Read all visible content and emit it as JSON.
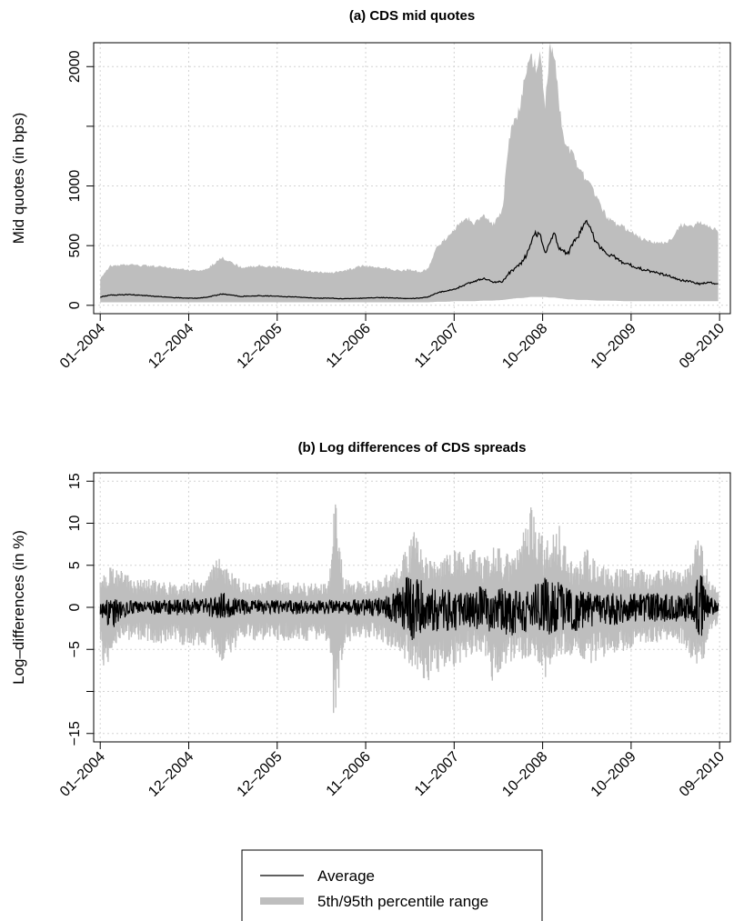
{
  "chart_data": [
    {
      "type": "area",
      "title": "(a) CDS mid quotes",
      "xlabel": "",
      "ylabel": "Mid quotes (in bps)",
      "x_tick_labels": [
        "01–2004",
        "12–2004",
        "12–2005",
        "11–2006",
        "11–2007",
        "10–2008",
        "10–2009",
        "09–2010"
      ],
      "y_ticks": [
        0,
        500,
        1000,
        1500,
        2000
      ],
      "y_tick_labels": [
        "0",
        "500",
        "1000",
        "",
        "2000"
      ],
      "ylim": [
        -70,
        2200
      ],
      "xlim": [
        2003.93,
        2010.73
      ],
      "grid": true,
      "band": {
        "x": [
          2004.0,
          2004.1,
          2004.3,
          2004.5,
          2004.7,
          2004.9,
          2005.05,
          2005.15,
          2005.3,
          2005.5,
          2005.7,
          2005.9,
          2006.1,
          2006.3,
          2006.45,
          2006.6,
          2006.8,
          2007.0,
          2007.2,
          2007.3,
          2007.4,
          2007.5,
          2007.6,
          2007.7,
          2007.8,
          2007.9,
          2008.0,
          2008.1,
          2008.2,
          2008.3,
          2008.35,
          2008.4,
          2008.45,
          2008.5,
          2008.55,
          2008.6,
          2008.65,
          2008.7,
          2008.75,
          2008.8,
          2008.85,
          2008.9,
          2008.95,
          2009.0,
          2009.05,
          2009.1,
          2009.2,
          2009.3,
          2009.4,
          2009.5,
          2009.6,
          2009.7,
          2009.8,
          2009.9,
          2010.0,
          2010.1,
          2010.2,
          2010.3,
          2010.4,
          2010.5,
          2010.6
        ],
        "upper": [
          220,
          330,
          340,
          330,
          320,
          300,
          290,
          310,
          400,
          320,
          330,
          320,
          300,
          280,
          270,
          290,
          330,
          320,
          290,
          300,
          280,
          300,
          500,
          560,
          650,
          740,
          680,
          760,
          680,
          800,
          1300,
          1500,
          1550,
          1750,
          1950,
          2100,
          2000,
          2150,
          1650,
          2150,
          2100,
          1700,
          1400,
          1300,
          1250,
          1150,
          1050,
          900,
          750,
          680,
          650,
          600,
          550,
          530,
          520,
          550,
          680,
          650,
          700,
          660,
          630
        ],
        "lower": [
          25,
          25,
          25,
          25,
          25,
          25,
          25,
          25,
          25,
          25,
          25,
          25,
          25,
          25,
          25,
          25,
          25,
          25,
          25,
          25,
          25,
          25,
          30,
          30,
          35,
          35,
          35,
          40,
          40,
          45,
          50,
          55,
          60,
          60,
          65,
          70,
          70,
          70,
          70,
          65,
          65,
          60,
          55,
          50,
          50,
          45,
          45,
          40,
          40,
          38,
          35,
          35,
          35,
          35,
          35,
          35,
          35,
          35,
          35,
          35,
          35
        ]
      },
      "average": {
        "x": [
          2004.0,
          2004.1,
          2004.3,
          2004.5,
          2004.7,
          2004.9,
          2005.05,
          2005.15,
          2005.3,
          2005.5,
          2005.7,
          2005.9,
          2006.1,
          2006.3,
          2006.45,
          2006.6,
          2006.8,
          2007.0,
          2007.2,
          2007.3,
          2007.4,
          2007.5,
          2007.6,
          2007.7,
          2007.8,
          2007.9,
          2008.0,
          2008.1,
          2008.2,
          2008.3,
          2008.35,
          2008.4,
          2008.45,
          2008.5,
          2008.55,
          2008.6,
          2008.65,
          2008.7,
          2008.75,
          2008.8,
          2008.85,
          2008.9,
          2008.95,
          2009.0,
          2009.05,
          2009.1,
          2009.2,
          2009.3,
          2009.4,
          2009.5,
          2009.6,
          2009.7,
          2009.8,
          2009.9,
          2010.0,
          2010.1,
          2010.2,
          2010.3,
          2010.4,
          2010.5,
          2010.6
        ],
        "values": [
          70,
          85,
          90,
          80,
          70,
          60,
          60,
          70,
          95,
          75,
          80,
          75,
          70,
          60,
          60,
          55,
          60,
          65,
          60,
          55,
          60,
          70,
          105,
          120,
          140,
          175,
          200,
          230,
          190,
          200,
          260,
          290,
          320,
          360,
          420,
          530,
          600,
          580,
          430,
          540,
          600,
          480,
          450,
          440,
          520,
          580,
          700,
          520,
          440,
          400,
          350,
          330,
          300,
          280,
          260,
          240,
          210,
          200,
          180,
          190,
          180
        ]
      }
    },
    {
      "type": "area",
      "title": "(b) Log differences of CDS spreads",
      "xlabel": "",
      "ylabel": "Log–differences (in %)",
      "x_tick_labels": [
        "01–2004",
        "12–2004",
        "12–2005",
        "11–2006",
        "11–2007",
        "10–2008",
        "10–2009",
        "09–2010"
      ],
      "y_ticks": [
        -15,
        -10,
        -5,
        0,
        5,
        10,
        15
      ],
      "y_tick_labels": [
        "−15",
        "",
        "−5",
        "0",
        "5",
        "10",
        "15"
      ],
      "ylim": [
        -16,
        16
      ],
      "xlim": [
        2003.93,
        2010.73
      ],
      "grid": true,
      "band_envelope": {
        "x": [
          2004.0,
          2004.05,
          2004.1,
          2004.2,
          2004.35,
          2004.5,
          2004.65,
          2004.8,
          2004.95,
          2005.1,
          2005.2,
          2005.3,
          2005.4,
          2005.5,
          2005.7,
          2005.9,
          2006.1,
          2006.3,
          2006.45,
          2006.5,
          2006.6,
          2006.8,
          2007.0,
          2007.1,
          2007.2,
          2007.35,
          2007.5,
          2007.65,
          2007.8,
          2007.95,
          2008.0,
          2008.1,
          2008.2,
          2008.3,
          2008.45,
          2008.6,
          2008.75,
          2008.9,
          2009.0,
          2009.1,
          2009.2,
          2009.35,
          2009.5,
          2009.65,
          2009.8,
          2009.95,
          2010.1,
          2010.25,
          2010.4,
          2010.5,
          2010.6
        ],
        "upper": [
          3.5,
          4.5,
          5.0,
          4.5,
          3.5,
          3.5,
          3.0,
          3.0,
          3.0,
          4.0,
          5.0,
          6.5,
          4.5,
          3.5,
          3.0,
          3.5,
          3.0,
          3.0,
          3.5,
          14.0,
          3.5,
          3.0,
          3.5,
          4.5,
          5.0,
          10.0,
          6.0,
          5.5,
          7.5,
          6.5,
          7.0,
          6.0,
          8.5,
          6.5,
          7.0,
          13.0,
          7.5,
          10.5,
          6.0,
          5.5,
          7.0,
          5.0,
          4.5,
          5.0,
          4.5,
          4.5,
          5.0,
          4.5,
          9.0,
          3.5,
          2.0
        ],
        "lower": [
          -3.5,
          -10.5,
          -5.0,
          -4.5,
          -4.0,
          -4.0,
          -4.5,
          -4.0,
          -5.0,
          -4.5,
          -5.0,
          -6.5,
          -5.5,
          -4.0,
          -4.0,
          -4.0,
          -4.0,
          -4.0,
          -4.5,
          -15.0,
          -4.5,
          -3.5,
          -4.0,
          -5.0,
          -5.5,
          -7.5,
          -9.0,
          -8.0,
          -7.0,
          -6.0,
          -5.5,
          -6.0,
          -9.5,
          -7.0,
          -6.5,
          -6.0,
          -8.5,
          -5.5,
          -6.0,
          -5.5,
          -7.0,
          -6.0,
          -5.5,
          -5.0,
          -5.0,
          -4.5,
          -4.0,
          -5.0,
          -8.5,
          -3.0,
          -2.0
        ]
      },
      "average_envelope": {
        "x": [
          2004.0,
          2004.1,
          2004.3,
          2004.5,
          2004.7,
          2004.9,
          2005.1,
          2005.2,
          2005.3,
          2005.4,
          2005.5,
          2005.7,
          2005.9,
          2006.1,
          2006.3,
          2006.5,
          2006.7,
          2006.9,
          2007.0,
          2007.1,
          2007.2,
          2007.35,
          2007.5,
          2007.7,
          2007.9,
          2008.0,
          2008.2,
          2008.4,
          2008.6,
          2008.75,
          2008.9,
          2009.1,
          2009.3,
          2009.5,
          2009.7,
          2009.9,
          2010.1,
          2010.3,
          2010.4,
          2010.5,
          2010.6
        ],
        "upper": [
          1.0,
          1.2,
          1.0,
          1.0,
          1.0,
          1.2,
          1.2,
          1.5,
          2.3,
          1.5,
          1.2,
          1.0,
          1.0,
          1.0,
          1.0,
          1.0,
          1.2,
          1.2,
          1.5,
          2.0,
          3.5,
          5.0,
          3.0,
          2.5,
          2.5,
          3.0,
          3.0,
          2.5,
          3.0,
          4.5,
          3.5,
          2.5,
          2.0,
          2.0,
          2.0,
          2.0,
          2.0,
          2.0,
          5.5,
          1.5,
          1.0
        ],
        "lower": [
          -1.0,
          -3.5,
          -1.0,
          -1.0,
          -1.0,
          -1.2,
          -1.2,
          -1.5,
          -1.5,
          -1.5,
          -1.2,
          -1.0,
          -1.0,
          -1.0,
          -1.0,
          -1.0,
          -1.2,
          -1.2,
          -1.5,
          -2.0,
          -2.5,
          -5.0,
          -3.5,
          -3.5,
          -3.0,
          -3.0,
          -3.5,
          -4.0,
          -3.5,
          -4.0,
          -3.5,
          -3.5,
          -2.5,
          -2.5,
          -2.0,
          -2.0,
          -2.0,
          -2.0,
          -5.0,
          -1.5,
          -1.0
        ]
      }
    }
  ],
  "legend": {
    "placement": "bottom-center",
    "entries": [
      {
        "label": "Average",
        "color": "#000000",
        "style": "thin-line"
      },
      {
        "label": "5th/95th percentile range",
        "color": "#bebebe",
        "style": "thick-line"
      }
    ]
  },
  "colors": {
    "band": "#bebebe",
    "average": "#000000",
    "grid": "#d3d3d3"
  }
}
